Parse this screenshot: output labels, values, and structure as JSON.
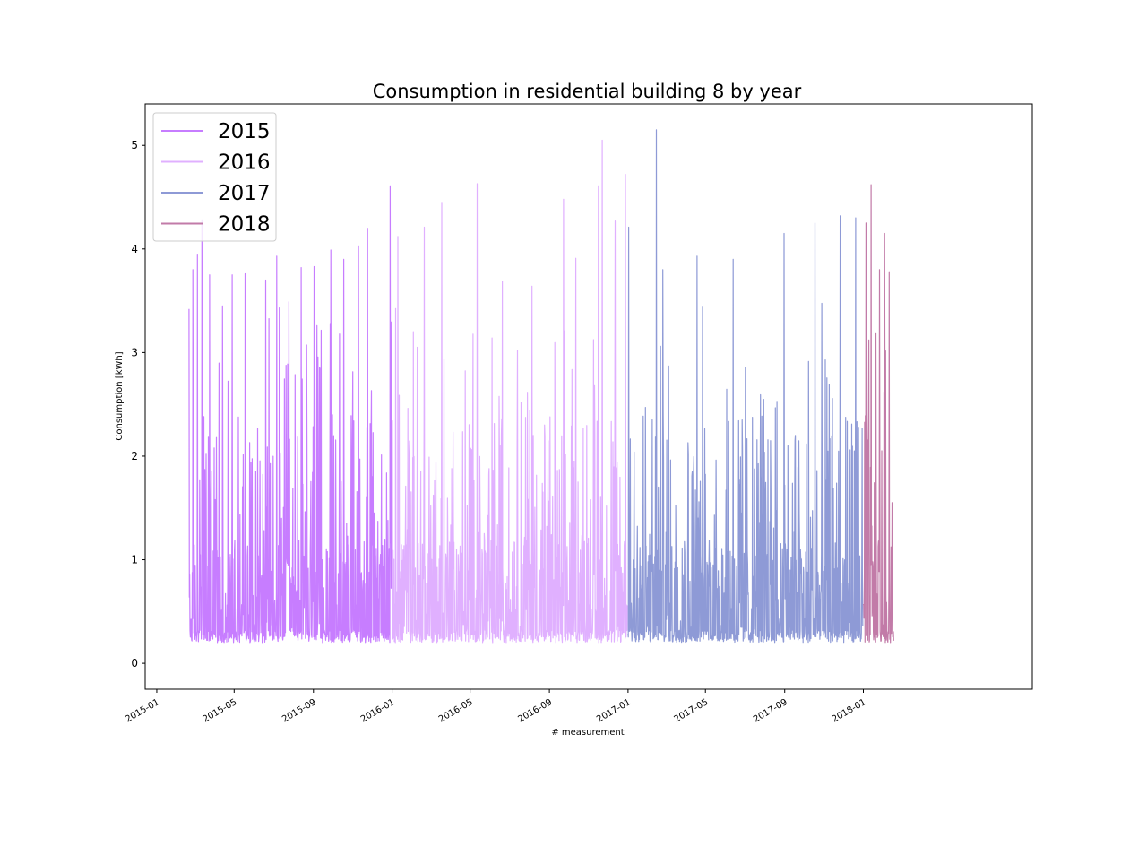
{
  "chart_data": {
    "type": "line",
    "title": "Consumption in residential building 8 by year",
    "xlabel": "# measurement",
    "ylabel": "Consumption [kWh]",
    "x_ticks": [
      "2015-01",
      "2015-05",
      "2015-09",
      "2016-01",
      "2016-05",
      "2016-09",
      "2017-01",
      "2017-05",
      "2017-09",
      "2018-01"
    ],
    "y_ticks": [
      "0",
      "1",
      "2",
      "3",
      "4",
      "5"
    ],
    "xlim": [
      "2014-12-14",
      "2018-09-20"
    ],
    "ylim": [
      -0.25,
      5.4
    ],
    "legend_position": "upper-left",
    "series": [
      {
        "name": "2015",
        "color": "#c77dff",
        "start": "2015-02-20",
        "end": "2015-12-31",
        "peaks": [
          {
            "date": "2015-02-20",
            "value": 3.42
          },
          {
            "date": "2015-02-26",
            "value": 3.8
          },
          {
            "date": "2015-03-05",
            "value": 3.95
          },
          {
            "date": "2015-03-12",
            "value": 4.28
          },
          {
            "date": "2015-03-24",
            "value": 3.75
          },
          {
            "date": "2015-04-13",
            "value": 3.45
          },
          {
            "date": "2015-04-28",
            "value": 3.75
          },
          {
            "date": "2015-05-18",
            "value": 3.76
          },
          {
            "date": "2015-06-19",
            "value": 3.7
          },
          {
            "date": "2015-07-06",
            "value": 3.93
          },
          {
            "date": "2015-07-25",
            "value": 3.49
          },
          {
            "date": "2015-08-13",
            "value": 3.82
          },
          {
            "date": "2015-09-02",
            "value": 3.83
          },
          {
            "date": "2015-09-28",
            "value": 3.99
          },
          {
            "date": "2015-10-18",
            "value": 3.9
          },
          {
            "date": "2015-11-10",
            "value": 4.03
          },
          {
            "date": "2015-11-24",
            "value": 4.2
          },
          {
            "date": "2015-12-29",
            "value": 4.61
          }
        ]
      },
      {
        "name": "2016",
        "color": "#e0b0ff",
        "start": "2016-01-01",
        "end": "2016-12-31",
        "peaks": [
          {
            "date": "2016-01-10",
            "value": 4.12
          },
          {
            "date": "2016-02-20",
            "value": 4.21
          },
          {
            "date": "2016-03-18",
            "value": 4.45
          },
          {
            "date": "2016-05-12",
            "value": 4.63
          },
          {
            "date": "2016-06-20",
            "value": 3.69
          },
          {
            "date": "2016-08-05",
            "value": 3.64
          },
          {
            "date": "2016-09-23",
            "value": 4.48
          },
          {
            "date": "2016-10-12",
            "value": 3.91
          },
          {
            "date": "2016-11-16",
            "value": 4.61
          },
          {
            "date": "2016-11-22",
            "value": 5.05
          },
          {
            "date": "2016-12-12",
            "value": 4.27
          },
          {
            "date": "2016-12-28",
            "value": 4.72
          }
        ]
      },
      {
        "name": "2017",
        "color": "#8e9ad6",
        "start": "2017-01-01",
        "end": "2017-12-31",
        "peaks": [
          {
            "date": "2017-01-02",
            "value": 4.21
          },
          {
            "date": "2017-02-14",
            "value": 5.15
          },
          {
            "date": "2017-02-24",
            "value": 3.8
          },
          {
            "date": "2017-04-18",
            "value": 3.93
          },
          {
            "date": "2017-06-13",
            "value": 3.9
          },
          {
            "date": "2017-08-31",
            "value": 4.15
          },
          {
            "date": "2017-10-18",
            "value": 4.25
          },
          {
            "date": "2017-11-26",
            "value": 4.32
          },
          {
            "date": "2017-12-20",
            "value": 4.3
          }
        ]
      },
      {
        "name": "2018",
        "color": "#c27ba8",
        "start": "2018-01-01",
        "end": "2018-02-17",
        "peaks": [
          {
            "date": "2018-01-05",
            "value": 4.25
          },
          {
            "date": "2018-01-13",
            "value": 4.62
          },
          {
            "date": "2018-01-26",
            "value": 3.8
          },
          {
            "date": "2018-02-03",
            "value": 4.15
          },
          {
            "date": "2018-02-10",
            "value": 3.78
          }
        ]
      }
    ]
  }
}
